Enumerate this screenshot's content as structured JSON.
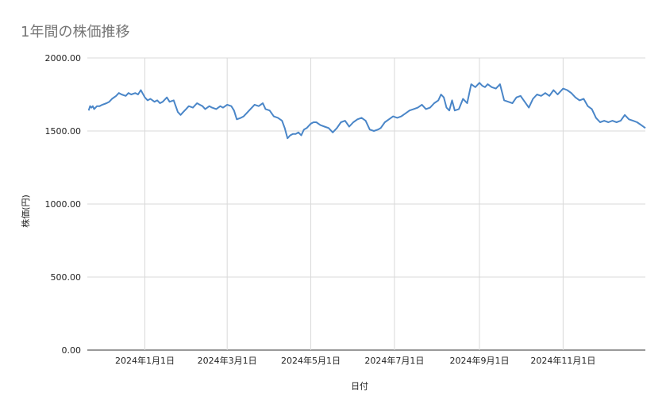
{
  "chart_data": {
    "type": "line",
    "title": "1年間の株価推移",
    "xlabel": "日付",
    "ylabel": "株価(円)",
    "ylim": [
      0,
      2000
    ],
    "yticks": [
      "0.00",
      "500.00",
      "1000.00",
      "1500.00",
      "2000.00"
    ],
    "yticks_values": [
      0,
      500,
      1000,
      1500,
      2000
    ],
    "xticks": [
      {
        "date": "2024-01-01",
        "label": "2024年1月1日"
      },
      {
        "date": "2024-03-01",
        "label": "2024年3月1日"
      },
      {
        "date": "2024-05-01",
        "label": "2024年5月1日"
      },
      {
        "date": "2024-07-01",
        "label": "2024年7月1日"
      },
      {
        "date": "2024-09-01",
        "label": "2024年9月1日"
      },
      {
        "date": "2024-11-01",
        "label": "2024年11月1日"
      }
    ],
    "xlim": [
      "2023-11-20",
      "2024-12-31"
    ],
    "grid": true,
    "line_color": "#4a86c8",
    "series": [
      {
        "name": "",
        "x": [
          "2023-11-21",
          "2023-11-22",
          "2023-11-23",
          "2023-11-24",
          "2023-11-25",
          "2023-11-27",
          "2023-11-29",
          "2023-12-01",
          "2023-12-04",
          "2023-12-06",
          "2023-12-08",
          "2023-12-11",
          "2023-12-13",
          "2023-12-15",
          "2023-12-18",
          "2023-12-20",
          "2023-12-22",
          "2023-12-25",
          "2023-12-27",
          "2023-12-29",
          "2024-01-01",
          "2024-01-03",
          "2024-01-05",
          "2024-01-08",
          "2024-01-10",
          "2024-01-12",
          "2024-01-14",
          "2024-01-16",
          "2024-01-17",
          "2024-01-19",
          "2024-01-22",
          "2024-01-25",
          "2024-01-27",
          "2024-01-29",
          "2024-01-31",
          "2024-02-02",
          "2024-02-05",
          "2024-02-08",
          "2024-02-10",
          "2024-02-12",
          "2024-02-14",
          "2024-02-17",
          "2024-02-19",
          "2024-02-22",
          "2024-02-25",
          "2024-02-27",
          "2024-03-01",
          "2024-03-04",
          "2024-03-06",
          "2024-03-08",
          "2024-03-11",
          "2024-03-13",
          "2024-03-15",
          "2024-03-18",
          "2024-03-21",
          "2024-03-24",
          "2024-03-27",
          "2024-03-29",
          "2024-04-01",
          "2024-04-04",
          "2024-04-07",
          "2024-04-10",
          "2024-04-12",
          "2024-04-14",
          "2024-04-16",
          "2024-04-18",
          "2024-04-20",
          "2024-04-22",
          "2024-04-24",
          "2024-04-26",
          "2024-04-28",
          "2024-05-01",
          "2024-05-03",
          "2024-05-05",
          "2024-05-08",
          "2024-05-11",
          "2024-05-14",
          "2024-05-17",
          "2024-05-20",
          "2024-05-23",
          "2024-05-26",
          "2024-05-29",
          "2024-06-01",
          "2024-06-04",
          "2024-06-07",
          "2024-06-10",
          "2024-06-13",
          "2024-06-16",
          "2024-06-19",
          "2024-06-21",
          "2024-06-24",
          "2024-06-27",
          "2024-06-30",
          "2024-07-03",
          "2024-07-06",
          "2024-07-09",
          "2024-07-12",
          "2024-07-15",
          "2024-07-18",
          "2024-07-21",
          "2024-07-24",
          "2024-07-27",
          "2024-07-30",
          "2024-08-02",
          "2024-08-04",
          "2024-08-06",
          "2024-08-08",
          "2024-08-10",
          "2024-08-12",
          "2024-08-14",
          "2024-08-17",
          "2024-08-20",
          "2024-08-23",
          "2024-08-26",
          "2024-08-29",
          "2024-09-01",
          "2024-09-03",
          "2024-09-05",
          "2024-09-07",
          "2024-09-10",
          "2024-09-13",
          "2024-09-16",
          "2024-09-19",
          "2024-09-22",
          "2024-09-25",
          "2024-09-28",
          "2024-10-01",
          "2024-10-04",
          "2024-10-07",
          "2024-10-10",
          "2024-10-13",
          "2024-10-16",
          "2024-10-19",
          "2024-10-22",
          "2024-10-25",
          "2024-10-28",
          "2024-11-01",
          "2024-11-04",
          "2024-11-07",
          "2024-11-10",
          "2024-11-13",
          "2024-11-16",
          "2024-11-19",
          "2024-11-22",
          "2024-11-25",
          "2024-11-28",
          "2024-12-01",
          "2024-12-04",
          "2024-12-07",
          "2024-12-10",
          "2024-12-13",
          "2024-12-16",
          "2024-12-19",
          "2024-12-22",
          "2024-12-25",
          "2024-12-28",
          "2024-12-31"
        ],
        "values": [
          1640,
          1670,
          1660,
          1670,
          1650,
          1670,
          1670,
          1680,
          1690,
          1700,
          1720,
          1740,
          1760,
          1750,
          1740,
          1760,
          1750,
          1760,
          1750,
          1780,
          1730,
          1710,
          1720,
          1700,
          1710,
          1690,
          1700,
          1720,
          1730,
          1700,
          1710,
          1630,
          1610,
          1630,
          1650,
          1670,
          1660,
          1690,
          1680,
          1670,
          1650,
          1670,
          1660,
          1650,
          1670,
          1660,
          1680,
          1670,
          1640,
          1580,
          1590,
          1600,
          1620,
          1650,
          1680,
          1670,
          1690,
          1650,
          1640,
          1600,
          1590,
          1570,
          1520,
          1450,
          1470,
          1480,
          1480,
          1490,
          1470,
          1510,
          1520,
          1550,
          1560,
          1560,
          1540,
          1530,
          1520,
          1490,
          1520,
          1560,
          1570,
          1530,
          1560,
          1580,
          1590,
          1570,
          1510,
          1500,
          1510,
          1520,
          1560,
          1580,
          1600,
          1590,
          1600,
          1620,
          1640,
          1650,
          1660,
          1680,
          1650,
          1660,
          1690,
          1710,
          1750,
          1730,
          1660,
          1640,
          1710,
          1640,
          1650,
          1720,
          1690,
          1820,
          1800,
          1830,
          1810,
          1800,
          1820,
          1800,
          1790,
          1820,
          1710,
          1700,
          1690,
          1730,
          1740,
          1700,
          1660,
          1720,
          1750,
          1740,
          1760,
          1740,
          1780,
          1750,
          1790,
          1780,
          1760,
          1730,
          1710,
          1720,
          1670,
          1650,
          1590,
          1560,
          1570,
          1560,
          1570,
          1560,
          1570,
          1610,
          1580,
          1570,
          1560,
          1540,
          1520
        ]
      }
    ]
  }
}
